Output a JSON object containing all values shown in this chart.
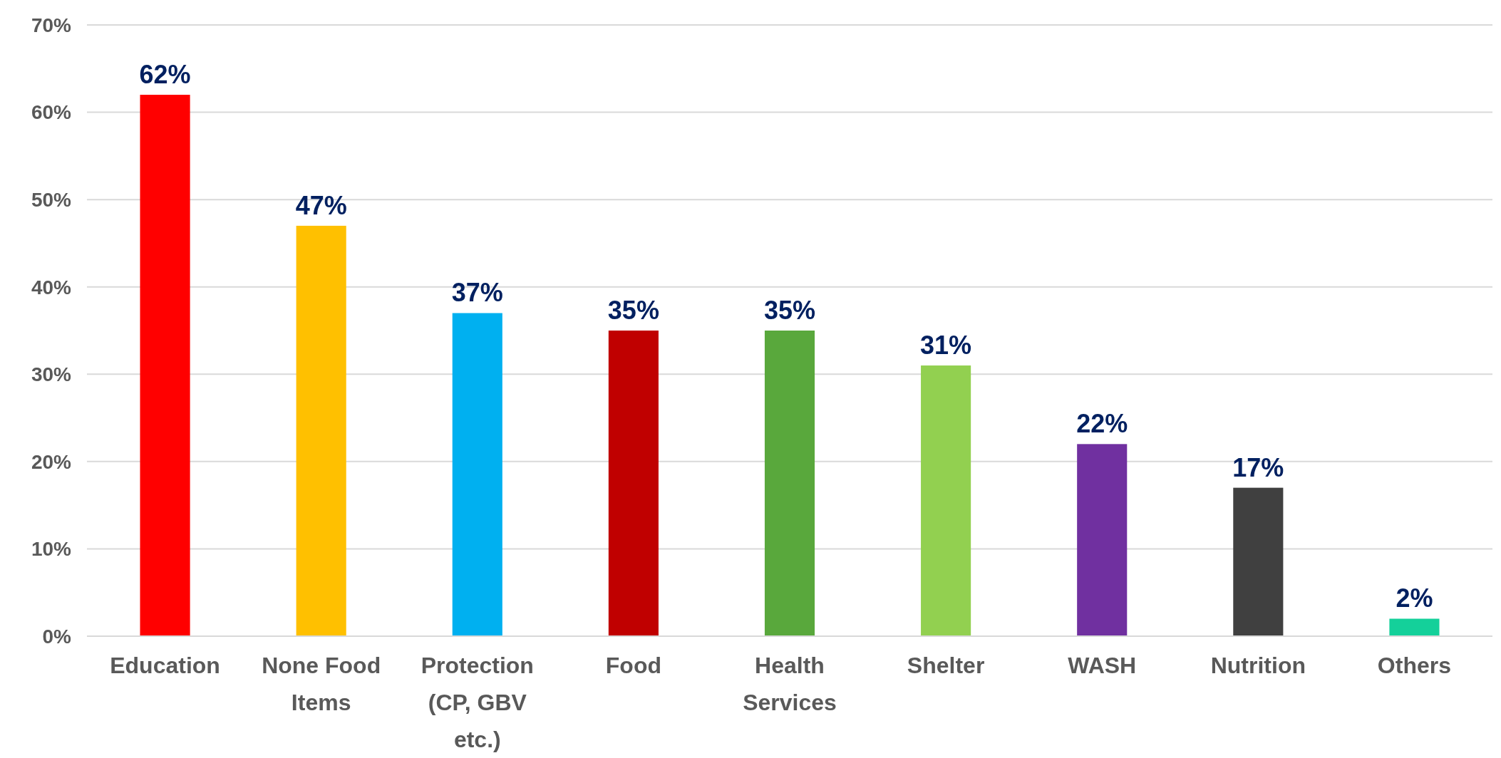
{
  "chart_data": {
    "type": "bar",
    "categories": [
      "Education",
      "None Food Items",
      "Protection (CP, GBV etc.)",
      "Food",
      "Health Services",
      "Shelter",
      "WASH",
      "Nutrition",
      "Others"
    ],
    "values": [
      62,
      47,
      37,
      35,
      35,
      31,
      22,
      17,
      2
    ],
    "colors": [
      "#ff0000",
      "#ffc000",
      "#00b0f0",
      "#c00000",
      "#59a83c",
      "#92d050",
      "#7030a0",
      "#404040",
      "#14d09a"
    ],
    "value_labels": [
      "62%",
      "47%",
      "37%",
      "35%",
      "35%",
      "31%",
      "22%",
      "17%",
      "2%"
    ],
    "ylim": [
      0,
      70
    ],
    "yticks": [
      {
        "value": 0,
        "label": "0%"
      },
      {
        "value": 10,
        "label": "10%"
      },
      {
        "value": 20,
        "label": "20%"
      },
      {
        "value": 30,
        "label": "30%"
      },
      {
        "value": 40,
        "label": "40%"
      },
      {
        "value": 50,
        "label": "50%"
      },
      {
        "value": 60,
        "label": "60%"
      },
      {
        "value": 70,
        "label": "70%"
      }
    ],
    "grid": "y"
  }
}
